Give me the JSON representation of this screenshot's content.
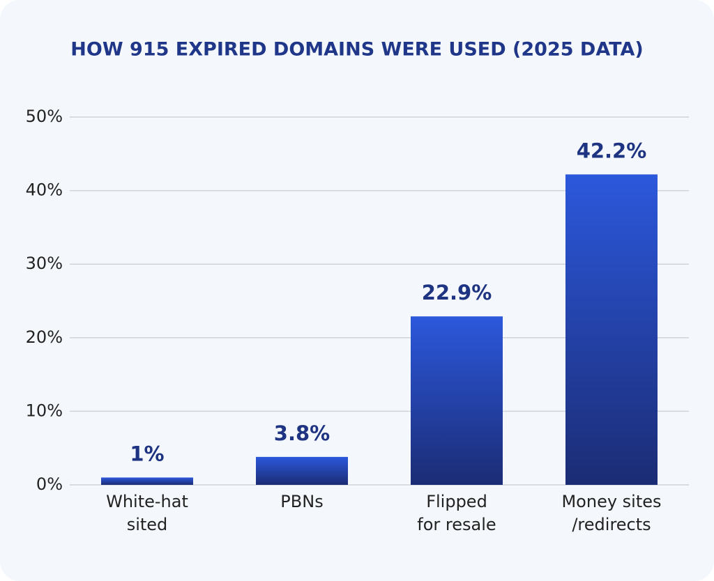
{
  "chart_data": {
    "type": "bar",
    "title": "HOW 915 EXPIRED DOMAINS WERE USED (2025 DATA)",
    "categories": [
      "White-hat\nsited",
      "PBNs",
      "Flipped\nfor resale",
      "Money sites\n/redirects"
    ],
    "values": [
      1,
      3.8,
      22.9,
      42.2
    ],
    "value_labels": [
      "1%",
      "3.8%",
      "22.9%",
      "42.2%"
    ],
    "color": [
      "#2c58dc",
      "#1b2c74"
    ],
    "ylim": [
      0,
      50
    ],
    "yticks": [
      {
        "value": 0,
        "label": "0%"
      },
      {
        "value": 10,
        "label": "10%"
      },
      {
        "value": 20,
        "label": "20%"
      },
      {
        "value": 30,
        "label": "30%"
      },
      {
        "value": 40,
        "label": "40%"
      },
      {
        "value": 50,
        "label": "50%"
      }
    ],
    "grid": true
  }
}
